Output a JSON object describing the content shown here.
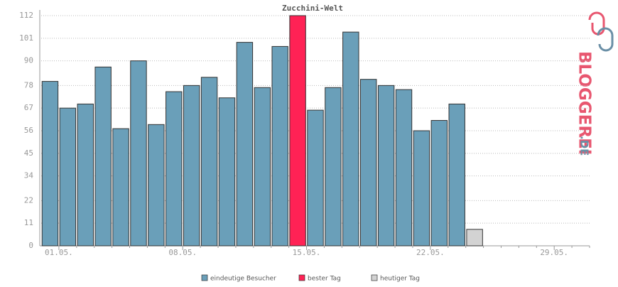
{
  "chart_data": {
    "type": "bar",
    "title": "Zucchini-Welt",
    "categories": [
      "01.05.",
      null,
      null,
      null,
      null,
      null,
      null,
      "08.05.",
      null,
      null,
      null,
      null,
      null,
      null,
      "15.05.",
      null,
      null,
      null,
      null,
      null,
      null,
      "22.05.",
      null,
      null,
      null,
      null,
      null,
      null,
      "29.05.",
      null,
      null
    ],
    "series": [
      {
        "name": "eindeutige Besucher",
        "color": "#6a9fb9",
        "values": [
          80,
          67,
          69,
          87,
          57,
          90,
          59,
          75,
          78,
          82,
          72,
          99,
          77,
          97,
          null,
          66,
          77,
          104,
          81,
          78,
          76,
          56,
          61,
          69,
          null,
          null,
          null,
          null,
          null,
          null,
          null
        ]
      },
      {
        "name": "bester Tag",
        "color": "#ff2255",
        "values": [
          null,
          null,
          null,
          null,
          null,
          null,
          null,
          null,
          null,
          null,
          null,
          null,
          null,
          null,
          112,
          null,
          null,
          null,
          null,
          null,
          null,
          null,
          null,
          null,
          null,
          null,
          null,
          null,
          null,
          null,
          null
        ]
      },
      {
        "name": "heutiger Tag",
        "color": "#d3d3d3",
        "values": [
          null,
          null,
          null,
          null,
          null,
          null,
          null,
          null,
          null,
          null,
          null,
          null,
          null,
          null,
          null,
          null,
          null,
          null,
          null,
          null,
          null,
          null,
          null,
          null,
          8,
          null,
          null,
          null,
          null,
          null,
          null
        ]
      }
    ],
    "ylim": [
      0,
      112
    ],
    "yticks": [
      0,
      11,
      22,
      34,
      45,
      56,
      67,
      78,
      90,
      101,
      112
    ],
    "grid": true
  },
  "logo": {
    "brand": "BLOGGEREI",
    "tld": ".DE"
  }
}
